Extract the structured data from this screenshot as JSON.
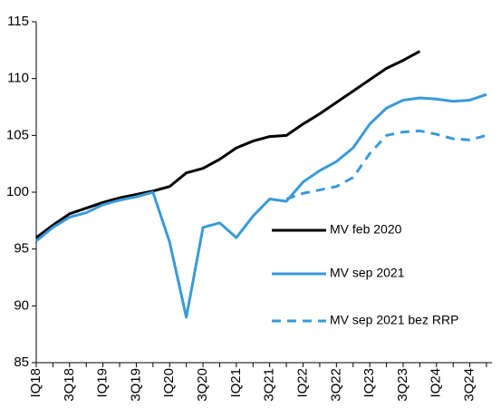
{
  "chart_data": {
    "type": "line",
    "categories": [
      "IQ18",
      null,
      "3Q18",
      null,
      "IQ19",
      null,
      "3Q19",
      null,
      "IQ20",
      null,
      "3Q20",
      null,
      "IQ21",
      null,
      "3Q21",
      null,
      "IQ22",
      null,
      "3Q22",
      null,
      "IQ23",
      null,
      "3Q23",
      null,
      "IQ24",
      null,
      "3Q24",
      null
    ],
    "series": [
      {
        "name": "MV feb 2020",
        "color": "#000000",
        "dash": false,
        "values": [
          96.0,
          97.1,
          98.1,
          98.6,
          99.1,
          99.5,
          99.8,
          100.1,
          100.5,
          101.7,
          102.1,
          102.9,
          103.9,
          104.5,
          104.9,
          105.0,
          106.0,
          106.9,
          107.9,
          108.9,
          109.9,
          110.9,
          111.6,
          112.4,
          null,
          null,
          null,
          null
        ]
      },
      {
        "name": "MV sep 2021",
        "color": "#3a9ad9",
        "dash": false,
        "values": [
          95.7,
          96.9,
          97.8,
          98.2,
          98.9,
          99.3,
          99.6,
          100.0,
          95.6,
          89.0,
          96.9,
          97.3,
          96.0,
          97.9,
          99.4,
          99.2,
          100.9,
          101.9,
          102.7,
          103.9,
          106.0,
          107.4,
          108.1,
          108.3,
          108.2,
          108.0,
          108.1,
          108.6
        ]
      },
      {
        "name": "MV sep 2021 bez RRP",
        "color": "#3a9ad9",
        "dash": true,
        "values": [
          null,
          null,
          null,
          null,
          null,
          null,
          null,
          null,
          null,
          null,
          null,
          null,
          null,
          null,
          null,
          99.4,
          99.9,
          100.2,
          100.5,
          101.3,
          103.4,
          105.0,
          105.3,
          105.4,
          105.1,
          104.7,
          104.6,
          105.0
        ]
      }
    ],
    "ylim": [
      85,
      115
    ],
    "yticks": [
      85,
      90,
      95,
      100,
      105,
      110,
      115
    ],
    "grid": false
  }
}
